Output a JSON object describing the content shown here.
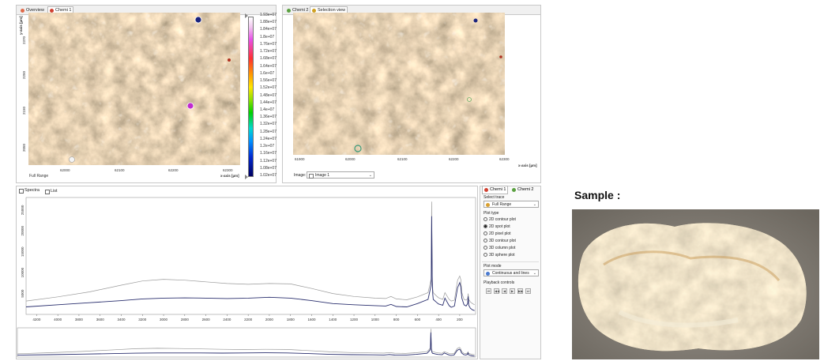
{
  "left_pane": {
    "tabs": [
      {
        "label": "Overview",
        "active": false
      },
      {
        "label": "Chemi 1",
        "active": true
      }
    ],
    "x_ticks": [
      "62000",
      "62100",
      "62200",
      "62300"
    ],
    "x_axis_label": "x-axis [µm]",
    "y_axis_label": "y-axis [µm]",
    "y_ticks": [
      "2370",
      "2250",
      "2150",
      "2050"
    ],
    "range_label": "Full Range",
    "colorbar_labels": [
      "1.93e+07",
      "1.88e+07",
      "1.84e+07",
      "1.8e+07",
      "1.76e+07",
      "1.72e+07",
      "1.68e+07",
      "1.64e+07",
      "1.6e+07",
      "1.56e+07",
      "1.52e+07",
      "1.48e+07",
      "1.44e+07",
      "1.4e+07",
      "1.36e+07",
      "1.32e+07",
      "1.28e+07",
      "1.24e+07",
      "1.2e+07",
      "1.16e+07",
      "1.12e+07",
      "1.08e+07",
      "1.02e+07"
    ]
  },
  "right_pane": {
    "tabs": [
      {
        "label": "Chemi 2",
        "active": false
      },
      {
        "label": "Selection view",
        "active": true
      }
    ],
    "x_ticks": [
      "61900",
      "62000",
      "62100",
      "62200",
      "62300"
    ],
    "x_axis_label": "x-axis [µm]",
    "image_label": "Image:",
    "image_value": "Image 1"
  },
  "spectra_pane": {
    "tabs": [
      {
        "label": "Spectra",
        "active": true
      },
      {
        "label": "List",
        "active": false
      }
    ],
    "y_ticks": [
      "25000",
      "20000",
      "15000",
      "10000",
      "5000"
    ]
  },
  "controls": {
    "tabs": [
      {
        "label": "Chemi 1",
        "active": true
      },
      {
        "label": "Chemi 2",
        "active": false
      }
    ],
    "select_trace_label": "Select trace",
    "select_trace_value": "Full Range",
    "plot_type_label": "Plot type",
    "plot_types": [
      {
        "label": "2D contour plot",
        "selected": false
      },
      {
        "label": "2D spot plot",
        "selected": true
      },
      {
        "label": "2D pixel plot",
        "selected": false
      },
      {
        "label": "3D contour plot",
        "selected": false
      },
      {
        "label": "3D column plot",
        "selected": false
      },
      {
        "label": "3D sphere plot",
        "selected": false
      }
    ],
    "plot_mode_label": "Plot mode",
    "plot_mode_value": "Continuous and lines",
    "playback_label": "Playback controls",
    "playback_buttons": [
      "⏮",
      "◀◀",
      "◀",
      "▶",
      "▶▶",
      "⏭"
    ]
  },
  "sample": {
    "label": "Sample :"
  },
  "chart_data": {
    "type": "line",
    "title": "",
    "xlabel": "",
    "ylabel": "",
    "x_ticks": [
      4200,
      4000,
      3800,
      3600,
      3400,
      3200,
      3000,
      2800,
      2600,
      2400,
      2200,
      2000,
      1800,
      1600,
      1400,
      1200,
      1000,
      800,
      600,
      400,
      200
    ],
    "xlim": [
      4300,
      50
    ],
    "ylim": [
      0,
      28000
    ],
    "series": [
      {
        "x": [
          4300,
          4000,
          3700,
          3400,
          3200,
          3000,
          2800,
          2600,
          2400,
          2200,
          2000,
          1800,
          1600,
          1400,
          1200,
          1000,
          900,
          850,
          800,
          700,
          600,
          500,
          470,
          465,
          460,
          455,
          450,
          420,
          400,
          360,
          340,
          300,
          280,
          250,
          220,
          200,
          190,
          180,
          160,
          140,
          125,
          120,
          115,
          100,
          80,
          60
        ],
        "y": [
          3200,
          4200,
          5400,
          7000,
          8000,
          8400,
          8200,
          7800,
          7400,
          7200,
          7400,
          7300,
          6200,
          5000,
          4300,
          3900,
          3800,
          4300,
          3700,
          3500,
          4200,
          5200,
          8500,
          27000,
          9500,
          6000,
          5200,
          4400,
          4000,
          3600,
          5200,
          3600,
          3200,
          3400,
          8200,
          9200,
          8300,
          5200,
          3600,
          3400,
          3800,
          5000,
          3600,
          3000,
          2600,
          2300
        ]
      },
      {
        "x": [
          4300,
          4000,
          3700,
          3400,
          3200,
          3000,
          2800,
          2600,
          2400,
          2200,
          2000,
          1800,
          1600,
          1400,
          1200,
          1000,
          900,
          850,
          800,
          700,
          600,
          500,
          470,
          465,
          460,
          455,
          450,
          420,
          400,
          360,
          340,
          300,
          280,
          250,
          220,
          200,
          190,
          180,
          160,
          140,
          125,
          120,
          115,
          100,
          80,
          60
        ],
        "y": [
          1800,
          2300,
          2800,
          3300,
          3700,
          3900,
          3950,
          3900,
          3800,
          3900,
          4100,
          3900,
          3300,
          2600,
          2300,
          2100,
          2000,
          2400,
          1900,
          1800,
          2600,
          3600,
          7000,
          23500,
          8000,
          4800,
          3600,
          2900,
          2500,
          2200,
          3900,
          2100,
          1700,
          2000,
          6400,
          7600,
          6600,
          3900,
          2300,
          2000,
          2600,
          4300,
          2200,
          1500,
          1100,
          900
        ]
      }
    ]
  }
}
